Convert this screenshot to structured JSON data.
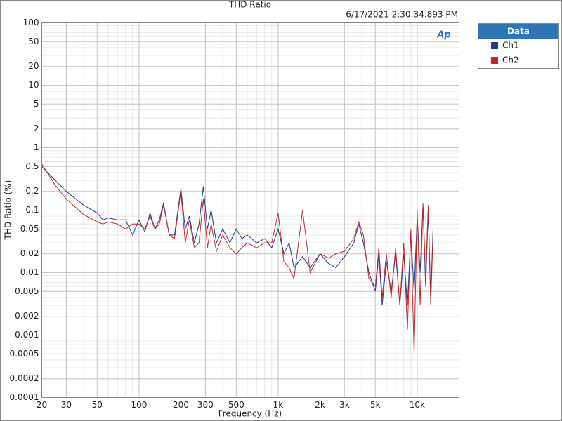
{
  "chart_data": {
    "type": "line",
    "title": "THD Ratio",
    "timestamp": "6/17/2021 2:30:34.893 PM",
    "logo": "Ap",
    "x_label": "Frequency (Hz)",
    "y_label": "THD Ratio (%)",
    "log_x": true,
    "log_y": true,
    "grid": true,
    "minor_grid": true,
    "legend_title": "Data",
    "legend": "outside-right",
    "xlim": [
      20,
      20000
    ],
    "xticks": [
      20,
      30,
      50,
      100,
      200,
      300,
      500,
      {
        "value": 1000,
        "label": "1k"
      },
      {
        "value": 2000,
        "label": "2k"
      },
      {
        "value": 3000,
        "label": "3k"
      },
      {
        "value": 5000,
        "label": "5k"
      },
      {
        "value": 10000,
        "label": "10k"
      }
    ],
    "ylim": [
      0.0001,
      100
    ],
    "yticks": [
      100,
      50,
      20,
      10,
      5,
      2,
      1,
      0.5,
      0.2,
      0.1,
      0.05,
      0.02,
      0.01,
      0.005,
      0.002,
      0.001,
      0.0005,
      0.0002,
      0.0001
    ],
    "x": [
      20,
      25,
      30,
      40,
      50,
      55,
      60,
      70,
      80,
      90,
      100,
      110,
      120,
      130,
      140,
      150,
      165,
      180,
      200,
      215,
      230,
      250,
      270,
      290,
      310,
      330,
      360,
      400,
      450,
      500,
      550,
      600,
      700,
      800,
      900,
      1000,
      1100,
      1200,
      1300,
      1500,
      1700,
      2000,
      2300,
      2600,
      3000,
      3500,
      3800,
      4100,
      4500,
      5000,
      5300,
      5600,
      6000,
      6500,
      7000,
      7500,
      8000,
      8500,
      9000,
      9500,
      10000,
      10500,
      11000,
      11500,
      12000,
      12500,
      13000
    ],
    "series": [
      {
        "name": "Ch1",
        "color": "#1f3a8a",
        "values": [
          0.5,
          0.3,
          0.2,
          0.12,
          0.09,
          0.07,
          0.075,
          0.07,
          0.07,
          0.04,
          0.07,
          0.045,
          0.09,
          0.05,
          0.07,
          0.13,
          0.04,
          0.04,
          0.22,
          0.05,
          0.08,
          0.03,
          0.06,
          0.24,
          0.05,
          0.1,
          0.03,
          0.05,
          0.03,
          0.05,
          0.035,
          0.04,
          0.03,
          0.035,
          0.025,
          0.05,
          0.02,
          0.03,
          0.012,
          0.018,
          0.012,
          0.02,
          0.014,
          0.012,
          0.018,
          0.03,
          0.06,
          0.03,
          0.01,
          0.005,
          0.02,
          0.003,
          0.015,
          0.005,
          0.02,
          0.003,
          0.02,
          0.003,
          0.04,
          0.005,
          0.08,
          0.01,
          0.12,
          0.006,
          0.1,
          0.004,
          0.05
        ]
      },
      {
        "name": "Ch2",
        "color": "#c0282d",
        "values": [
          0.55,
          0.25,
          0.15,
          0.085,
          0.065,
          0.06,
          0.065,
          0.06,
          0.05,
          0.06,
          0.06,
          0.05,
          0.08,
          0.05,
          0.06,
          0.12,
          0.04,
          0.035,
          0.2,
          0.03,
          0.07,
          0.025,
          0.03,
          0.15,
          0.025,
          0.06,
          0.022,
          0.04,
          0.025,
          0.02,
          0.025,
          0.03,
          0.025,
          0.03,
          0.03,
          0.09,
          0.015,
          0.012,
          0.008,
          0.1,
          0.01,
          0.02,
          0.017,
          0.02,
          0.022,
          0.035,
          0.065,
          0.04,
          0.008,
          0.006,
          0.025,
          0.004,
          0.02,
          0.004,
          0.025,
          0.003,
          0.03,
          0.0012,
          0.05,
          0.0005,
          0.1,
          0.003,
          0.13,
          0.008,
          0.12,
          0.003,
          0.04
        ]
      }
    ]
  }
}
